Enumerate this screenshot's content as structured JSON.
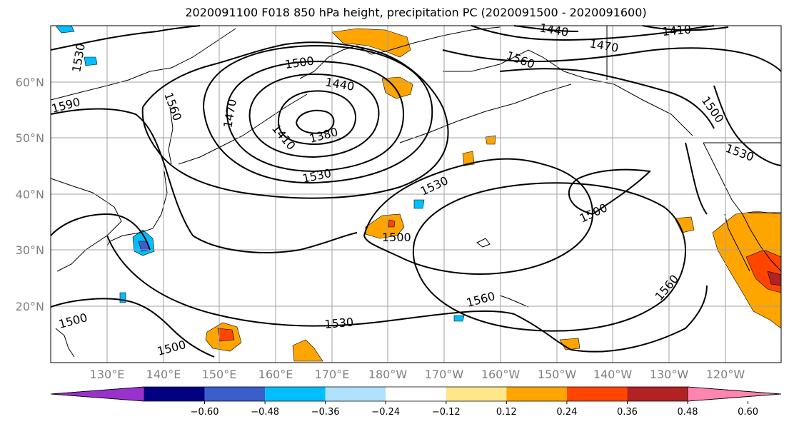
{
  "title": "2020091100 F018 850 hPa height, precipitation PC (2020091500 - 2020091600)",
  "latitude_labels": [
    "60°N",
    "50°N",
    "40°N",
    "30°N",
    "20°N"
  ],
  "longitude_labels": [
    "130°E",
    "140°E",
    "150°E",
    "160°E",
    "170°E",
    "180°W",
    "170°W",
    "160°W",
    "150°W",
    "140°W",
    "130°W",
    "120°W"
  ],
  "contour_labels": [
    "1530",
    "1590",
    "1560",
    "1500",
    "1440",
    "1470",
    "1410",
    "1380",
    "1530",
    "1440",
    "1470",
    "1410",
    "1560",
    "1500",
    "1530",
    "1500",
    "1530",
    "1500",
    "1560",
    "1560",
    "1500",
    "1530",
    "1500"
  ],
  "colorbar": {
    "ticks": [
      "−0.60",
      "−0.48",
      "−0.36",
      "−0.24",
      "−0.12",
      "0.12",
      "0.24",
      "0.36",
      "0.48",
      "0.60"
    ],
    "colors": [
      "#9932cc",
      "#000080",
      "#3a5fcd",
      "#00bfff",
      "#b0e2ff",
      "#ffffff",
      "#ffe78a",
      "#ffa500",
      "#ff4500",
      "#b22222",
      "#ff85b0"
    ]
  }
}
